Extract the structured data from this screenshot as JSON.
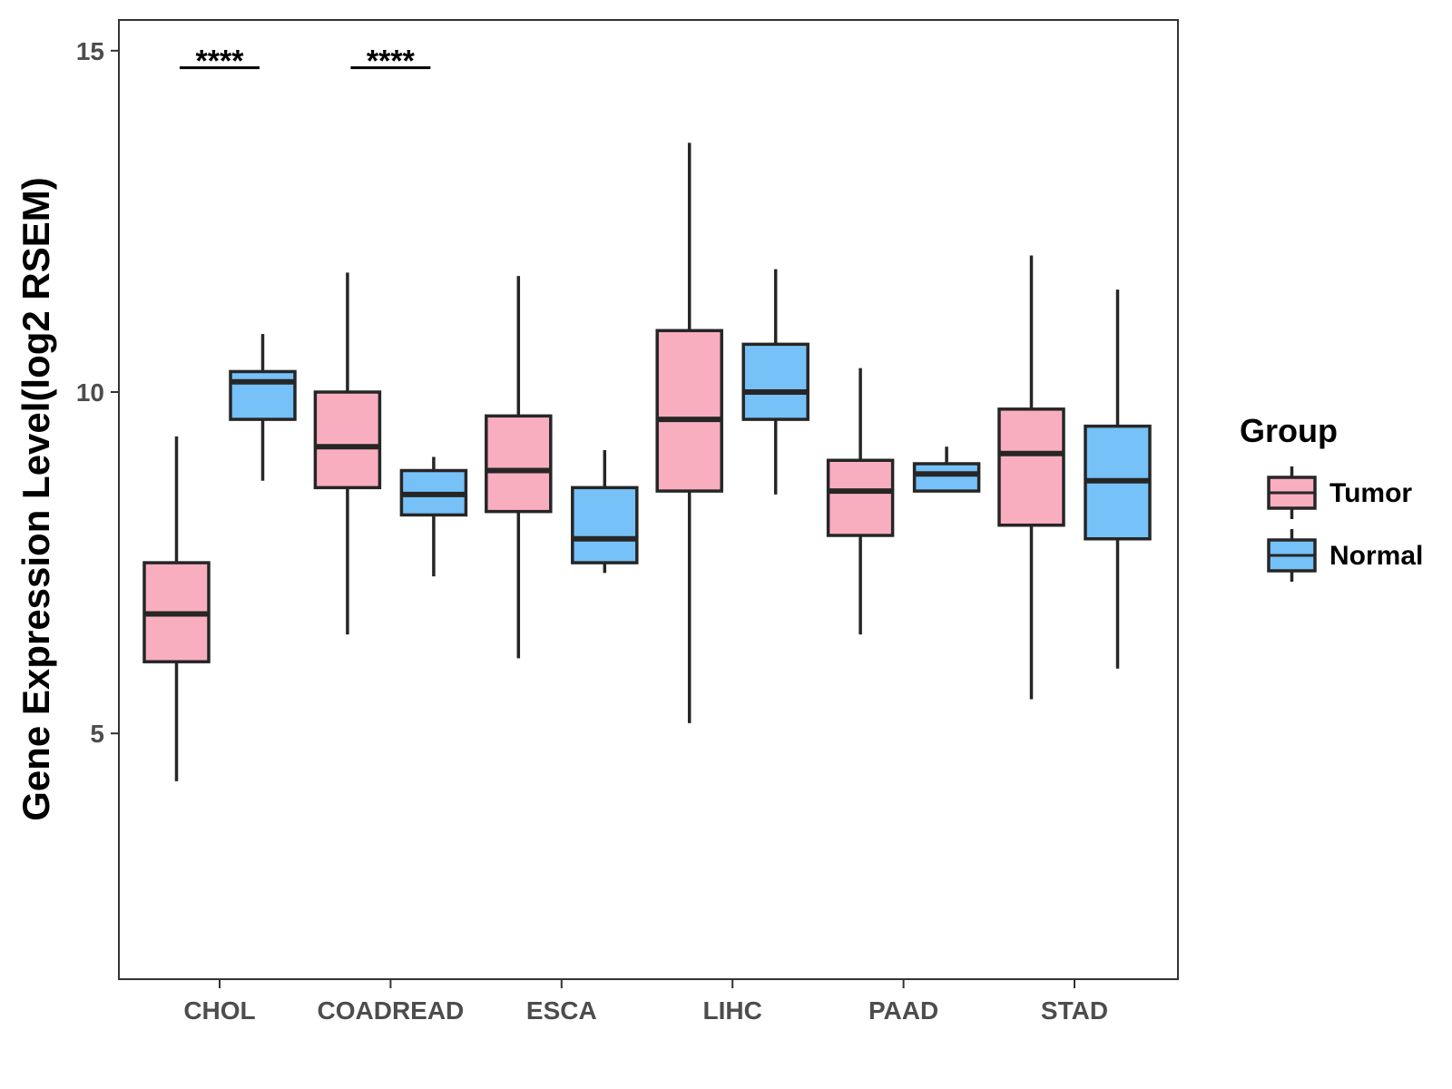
{
  "chart_data": {
    "type": "boxplot",
    "ylabel": "Gene Expression Level(log2 RSEM)",
    "xlabel": "",
    "ylim": [
      1.4,
      15.45
    ],
    "yticks": [
      5,
      10,
      15
    ],
    "categories": [
      "CHOL",
      "COADREAD",
      "ESCA",
      "LIHC",
      "PAAD",
      "STAD"
    ],
    "legend": {
      "title": "Group",
      "position": "right",
      "entries": [
        {
          "name": "Tumor",
          "color": "#F9AEC0"
        },
        {
          "name": "Normal",
          "color": "#76C1F7"
        }
      ]
    },
    "series": [
      {
        "name": "Tumor",
        "color": "#F9AEC0",
        "boxes": [
          {
            "category": "CHOL",
            "min": 4.3,
            "q1": 6.05,
            "median": 6.75,
            "q3": 7.5,
            "max": 9.35
          },
          {
            "category": "COADREAD",
            "min": 6.45,
            "q1": 8.6,
            "median": 9.2,
            "q3": 10.0,
            "max": 11.75
          },
          {
            "category": "ESCA",
            "min": 6.1,
            "q1": 8.25,
            "median": 8.85,
            "q3": 9.65,
            "max": 11.7
          },
          {
            "category": "LIHC",
            "min": 5.15,
            "q1": 8.55,
            "median": 9.6,
            "q3": 10.9,
            "max": 13.65
          },
          {
            "category": "PAAD",
            "min": 6.45,
            "q1": 7.9,
            "median": 8.55,
            "q3": 9.0,
            "max": 10.35
          },
          {
            "category": "STAD",
            "min": 5.5,
            "q1": 8.05,
            "median": 9.1,
            "q3": 9.75,
            "max": 12.0
          }
        ]
      },
      {
        "name": "Normal",
        "color": "#76C1F7",
        "boxes": [
          {
            "category": "CHOL",
            "min": 8.7,
            "q1": 9.6,
            "median": 10.15,
            "q3": 10.3,
            "max": 10.85
          },
          {
            "category": "COADREAD",
            "min": 7.3,
            "q1": 8.2,
            "median": 8.5,
            "q3": 8.85,
            "max": 9.05
          },
          {
            "category": "ESCA",
            "min": 7.35,
            "q1": 7.5,
            "median": 7.85,
            "q3": 8.6,
            "max": 9.15
          },
          {
            "category": "LIHC",
            "min": 8.5,
            "q1": 9.6,
            "median": 10.0,
            "q3": 10.7,
            "max": 11.8
          },
          {
            "category": "PAAD",
            "min": 8.55,
            "q1": 8.55,
            "median": 8.8,
            "q3": 8.95,
            "max": 9.2
          },
          {
            "category": "STAD",
            "min": 5.95,
            "q1": 7.85,
            "median": 8.7,
            "q3": 9.5,
            "max": 11.5
          }
        ]
      }
    ],
    "annotations": [
      {
        "category": "CHOL",
        "label": "****",
        "y": 14.75
      },
      {
        "category": "COADREAD",
        "label": "****",
        "y": 14.75
      }
    ]
  }
}
